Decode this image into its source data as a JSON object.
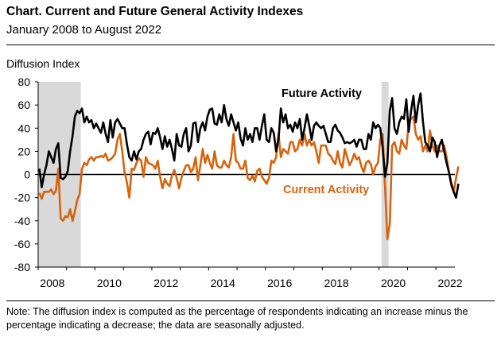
{
  "header": {
    "title": "Chart. Current and Future General Activity Indexes",
    "subtitle": "January 2008 to August 2022"
  },
  "note": "Note: The diffusion index is computed as the percentage of respondents indicating an increase minus the percentage indicating a decrease; the data are seasonally adjusted.",
  "colors": {
    "future": "#000000",
    "current": "#D4640F",
    "recession": "#D9D9D9"
  },
  "chart_data": {
    "type": "line",
    "title": "Chart. Current and Future General Activity Indexes",
    "subtitle": "January 2008 to August 2022",
    "ylabel": "Diffusion Index",
    "ylim": [
      -80,
      80
    ],
    "yticks": [
      -80,
      -60,
      -40,
      -20,
      0,
      20,
      40,
      60,
      80
    ],
    "xticks": [
      "2008",
      "2010",
      "2012",
      "2014",
      "2016",
      "2018",
      "2020",
      "2022"
    ],
    "x_start": "2008-01",
    "x_end": "2022-08",
    "grid": false,
    "recessions": [
      {
        "start": "2008-01",
        "end": "2009-06"
      },
      {
        "start": "2020-02",
        "end": "2020-04"
      }
    ],
    "series": [
      {
        "name": "Future Activity",
        "values": [
          5,
          -11,
          0,
          8,
          20,
          15,
          10,
          22,
          27,
          -3,
          -4,
          -2,
          3,
          20,
          33,
          50,
          55,
          53,
          57,
          45,
          50,
          45,
          47,
          40,
          44,
          40,
          36,
          45,
          35,
          28,
          47,
          32,
          45,
          48,
          44,
          40,
          40,
          26,
          15,
          12,
          20,
          13,
          20,
          22,
          30,
          35,
          37,
          26,
          36,
          35,
          40,
          32,
          22,
          33,
          24,
          30,
          22,
          12,
          35,
          25,
          24,
          35,
          40,
          20,
          25,
          44,
          45,
          28,
          40,
          45,
          38,
          50,
          56,
          57,
          44,
          43,
          52,
          45,
          60,
          48,
          42,
          52,
          45,
          38,
          45,
          31,
          25,
          40,
          30,
          35,
          28,
          40,
          40,
          30,
          42,
          52,
          30,
          28,
          40,
          36,
          20,
          30,
          57,
          45,
          52,
          40,
          43,
          37,
          45,
          40,
          48,
          30,
          40,
          52,
          42,
          30,
          42,
          45,
          42,
          40,
          42,
          35,
          28,
          28,
          40,
          43,
          38,
          36,
          32,
          27,
          28,
          27,
          28,
          30,
          24,
          30,
          30,
          22,
          22,
          35,
          30,
          45,
          40,
          43,
          40,
          23,
          -2,
          10,
          55,
          66,
          40,
          35,
          45,
          50,
          48,
          65,
          37,
          55,
          68,
          45,
          60,
          70,
          46,
          28,
          25,
          20,
          32,
          28,
          15,
          25,
          30,
          20,
          10,
          2,
          -8,
          -15,
          -20,
          -8
        ]
      },
      {
        "name": "Current Activity",
        "values": [
          -16,
          -21,
          -15,
          -15,
          -15,
          -13,
          -17,
          -14,
          5,
          -38,
          -40,
          -36,
          -37,
          -30,
          -40,
          -32,
          -22,
          -17,
          5,
          10,
          8,
          13,
          15,
          12,
          15,
          15,
          16,
          15,
          18,
          12,
          13,
          15,
          18,
          30,
          35,
          20,
          2,
          -7,
          -20,
          5,
          4,
          10,
          14,
          12,
          -2,
          15,
          10,
          9,
          8,
          5,
          12,
          -2,
          -12,
          -4,
          -8,
          -10,
          -1,
          4,
          -3,
          -12,
          -3,
          3,
          8,
          8,
          2,
          5,
          15,
          -5,
          8,
          22,
          10,
          17,
          10,
          5,
          20,
          8,
          6,
          6,
          12,
          8,
          6,
          15,
          35,
          12,
          10,
          5,
          5,
          12,
          -3,
          -5,
          -1,
          -6,
          3,
          5,
          -2,
          -5,
          -8,
          -3,
          12,
          10,
          15,
          35,
          15,
          22,
          20,
          18,
          28,
          28,
          20,
          22,
          30,
          25,
          35,
          25,
          30,
          25,
          28,
          20,
          10,
          25,
          25,
          25,
          18,
          16,
          12,
          9,
          20,
          10,
          6,
          22,
          15,
          8,
          12,
          18,
          13,
          15,
          7,
          2,
          10,
          12,
          9,
          0,
          7,
          10,
          30,
          35,
          -10,
          -56,
          -43,
          25,
          28,
          20,
          18,
          30,
          25,
          22,
          45,
          48,
          50,
          35,
          30,
          33,
          20,
          25,
          20,
          38,
          25,
          20,
          25,
          20,
          20,
          25,
          15,
          2,
          -10,
          -15,
          -3,
          7
        ]
      }
    ],
    "annotations": [
      {
        "text": "Future Activity",
        "series": "Future Activity"
      },
      {
        "text": "Current Activity",
        "series": "Current Activity"
      }
    ]
  }
}
